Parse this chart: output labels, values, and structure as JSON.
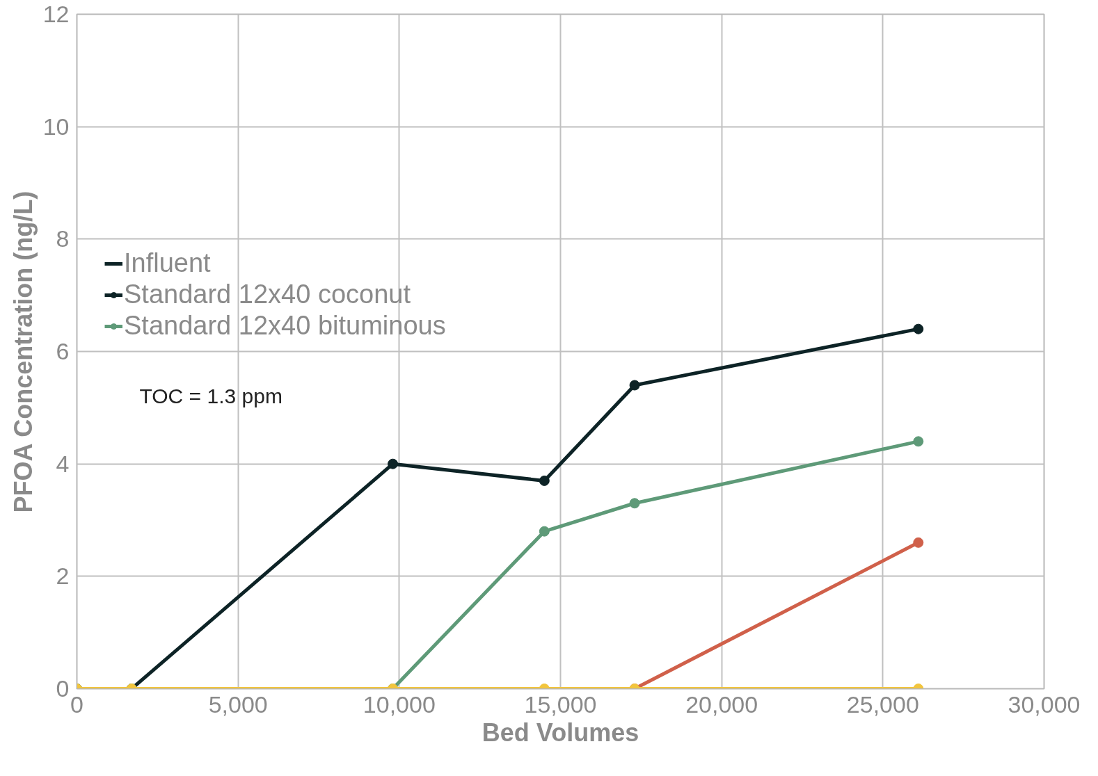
{
  "chart_data": {
    "type": "line",
    "x": [
      0,
      1700,
      9800,
      14500,
      17300,
      26100
    ],
    "series": [
      {
        "name": "Influent",
        "color": "#0d2326",
        "marker": "none",
        "values": [
          null,
          null,
          null,
          null,
          null,
          null
        ]
      },
      {
        "name": "Standard 12x40 coconut",
        "color": "#0d2326",
        "values": [
          0,
          0,
          4.0,
          3.7,
          5.4,
          6.4
        ]
      },
      {
        "name": "Standard 12x40 bituminous",
        "color": "#5e9a78",
        "values": [
          0,
          0,
          0,
          2.8,
          3.3,
          4.4
        ]
      },
      {
        "color": "#d0604a",
        "values": [
          null,
          null,
          null,
          null,
          0,
          2.6
        ]
      },
      {
        "color": "#f2c53d",
        "values": [
          0,
          0,
          0,
          0,
          0,
          0
        ]
      }
    ],
    "xlabel": "Bed Volumes",
    "ylabel": "PFOA Concentration (ng/L)",
    "xlim": [
      0,
      30000
    ],
    "xticks": [
      0,
      {
        "value": 5000,
        "label": "5,000"
      },
      {
        "value": 10000,
        "label": "10,000"
      },
      {
        "value": 15000,
        "label": "15,000"
      },
      {
        "value": 20000,
        "label": "20,000"
      },
      {
        "value": 25000,
        "label": "25,000"
      },
      {
        "value": 30000,
        "label": "30,000"
      }
    ],
    "ylim": [
      0,
      12
    ],
    "yticks": [
      0,
      2,
      4,
      6,
      8,
      10,
      12
    ],
    "annotations": [
      "TOC = 1.3 ppm"
    ],
    "grid": true,
    "legend": "top left",
    "marker": "circle",
    "line_style": "solid"
  }
}
